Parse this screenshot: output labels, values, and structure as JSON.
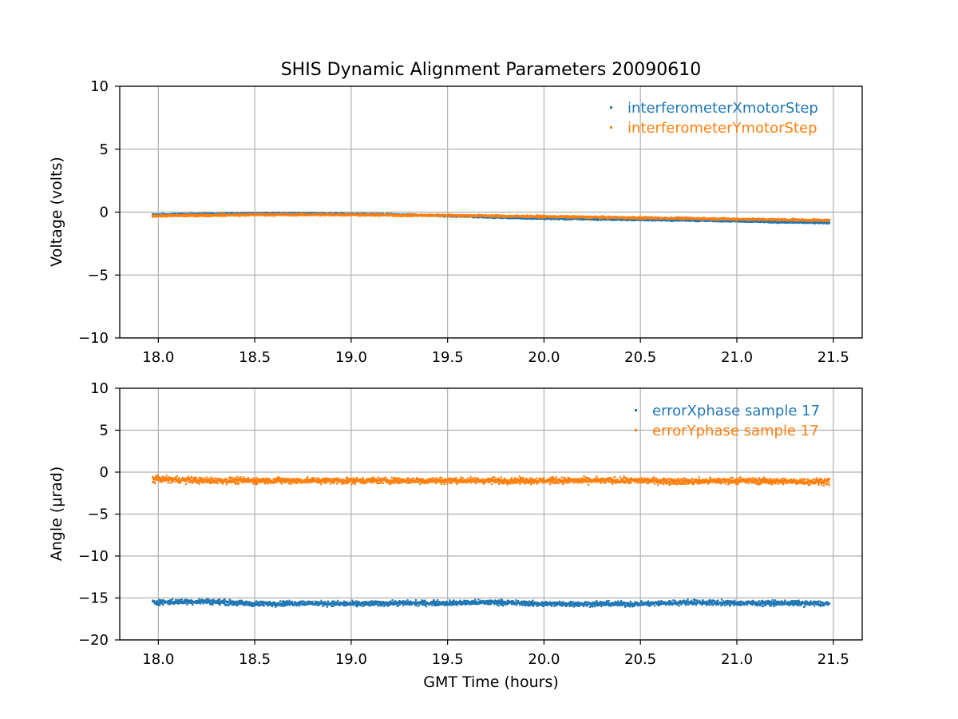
{
  "chart_data": [
    {
      "type": "scatter",
      "title": "SHIS Dynamic Alignment Parameters 20090610",
      "xlabel": "",
      "ylabel": "Voltage (volts)",
      "xlim": [
        17.8,
        21.65
      ],
      "ylim": [
        -10,
        10
      ],
      "xticks": [
        18.0,
        18.5,
        19.0,
        19.5,
        20.0,
        20.5,
        21.0,
        21.5
      ],
      "xtick_labels": [
        "18.0",
        "18.5",
        "19.0",
        "19.5",
        "20.0",
        "20.5",
        "21.0",
        "21.5"
      ],
      "yticks": [
        -10,
        -5,
        0,
        5,
        10
      ],
      "ytick_labels": [
        "−10",
        "−5",
        "0",
        "5",
        "10"
      ],
      "grid": true,
      "legend_position": "top-right",
      "series": [
        {
          "name": "interferometerXmotorStep",
          "color": "#1f77b4",
          "x": [
            17.97,
            18.25,
            18.5,
            18.75,
            19.0,
            19.25,
            19.5,
            19.75,
            20.0,
            20.25,
            20.5,
            20.75,
            21.0,
            21.25,
            21.48
          ],
          "y": [
            -0.2,
            -0.15,
            -0.1,
            -0.1,
            -0.15,
            -0.2,
            -0.3,
            -0.4,
            -0.5,
            -0.55,
            -0.6,
            -0.65,
            -0.7,
            -0.8,
            -0.85
          ],
          "spread": 0.1
        },
        {
          "name": "interferometerYmotorStep",
          "color": "#ff7f0e",
          "x": [
            17.97,
            18.25,
            18.5,
            18.75,
            19.0,
            19.25,
            19.5,
            19.75,
            20.0,
            20.25,
            20.5,
            20.75,
            21.0,
            21.25,
            21.48
          ],
          "y": [
            -0.3,
            -0.25,
            -0.2,
            -0.2,
            -0.2,
            -0.25,
            -0.25,
            -0.3,
            -0.35,
            -0.4,
            -0.45,
            -0.5,
            -0.55,
            -0.6,
            -0.65
          ],
          "spread": 0.12
        }
      ]
    },
    {
      "type": "scatter",
      "title": "",
      "xlabel": "GMT Time (hours)",
      "ylabel": "Angle (μrad)",
      "xlim": [
        17.8,
        21.65
      ],
      "ylim": [
        -20,
        10
      ],
      "xticks": [
        18.0,
        18.5,
        19.0,
        19.5,
        20.0,
        20.5,
        21.0,
        21.5
      ],
      "xtick_labels": [
        "18.0",
        "18.5",
        "19.0",
        "19.5",
        "20.0",
        "20.5",
        "21.0",
        "21.5"
      ],
      "yticks": [
        -20,
        -15,
        -10,
        -5,
        0,
        5,
        10
      ],
      "ytick_labels": [
        "−20",
        "−15",
        "−10",
        "−5",
        "0",
        "5",
        "10"
      ],
      "grid": true,
      "legend_position": "top-right",
      "series": [
        {
          "name": "errorXphase sample 17",
          "color": "#1f77b4",
          "x": [
            17.97,
            18.25,
            18.5,
            18.75,
            19.0,
            19.25,
            19.5,
            19.75,
            20.0,
            20.25,
            20.5,
            20.75,
            21.0,
            21.25,
            21.48
          ],
          "y": [
            -15.5,
            -15.4,
            -15.7,
            -15.6,
            -15.7,
            -15.6,
            -15.6,
            -15.5,
            -15.7,
            -15.7,
            -15.7,
            -15.5,
            -15.6,
            -15.6,
            -15.7
          ],
          "spread": 0.45
        },
        {
          "name": "errorYphase sample 17",
          "color": "#ff7f0e",
          "x": [
            17.97,
            18.25,
            18.5,
            18.75,
            19.0,
            19.25,
            19.5,
            19.75,
            20.0,
            20.25,
            20.5,
            20.75,
            21.0,
            21.25,
            21.48
          ],
          "y": [
            -0.8,
            -1.0,
            -1.0,
            -1.0,
            -1.0,
            -1.0,
            -1.0,
            -1.0,
            -1.0,
            -1.0,
            -1.0,
            -1.1,
            -1.0,
            -1.1,
            -1.1
          ],
          "spread": 0.55
        }
      ]
    }
  ]
}
